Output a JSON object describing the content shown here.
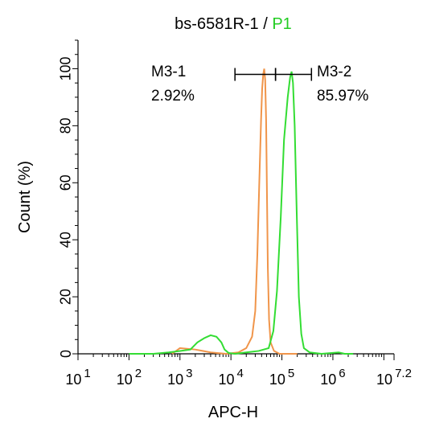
{
  "chart_data": {
    "type": "line",
    "title": {
      "prefix": "bs-6581R-1 / ",
      "highlight": "P1",
      "highlight_color": "#22cc22"
    },
    "xlabel": "APC-H",
    "ylabel": "Count  (%)",
    "x_scale": "log10",
    "xlim": [
      10,
      15848931.92
    ],
    "ylim": [
      0,
      110
    ],
    "x_ticks": [
      {
        "value": 10,
        "base": "10",
        "exp": "1"
      },
      {
        "value": 100,
        "base": "10",
        "exp": "2"
      },
      {
        "value": 1000,
        "base": "10",
        "exp": "3"
      },
      {
        "value": 10000,
        "base": "10",
        "exp": "4"
      },
      {
        "value": 100000,
        "base": "10",
        "exp": "5"
      },
      {
        "value": 1000000,
        "base": "10",
        "exp": "6"
      },
      {
        "value": 15848931.92,
        "base": "10",
        "exp": "7.2"
      }
    ],
    "y_ticks": [
      0,
      20,
      40,
      60,
      80,
      100
    ],
    "grid": false,
    "series": [
      {
        "color": "#f0954a",
        "x": [
          700,
          1000,
          2000,
          4000,
          8000,
          14000,
          20000,
          26000,
          30000,
          33000,
          36000,
          39000,
          41000,
          43000,
          45000,
          47000,
          49000,
          51000,
          53000,
          56000,
          60000,
          70000,
          90000,
          140000,
          200000
        ],
        "y": [
          0,
          2,
          1.5,
          0.5,
          0,
          0.5,
          2,
          6,
          15,
          35,
          60,
          82,
          93,
          98,
          100,
          96,
          82,
          55,
          30,
          12,
          4,
          1,
          0,
          0,
          0
        ]
      },
      {
        "color": "#33dd33",
        "x": [
          100,
          300,
          600,
          1000,
          1600,
          2200,
          3000,
          4000,
          5200,
          6500,
          7500,
          9000,
          12000,
          20000,
          35000,
          55000,
          68000,
          80000,
          95000,
          110000,
          130000,
          145000,
          155000,
          165000,
          178000,
          195000,
          215000,
          240000,
          270000,
          350000,
          600000,
          1300000,
          1700000,
          2500000
        ],
        "y": [
          0,
          0,
          0.5,
          1,
          1.5,
          4,
          5.5,
          6.5,
          6,
          4,
          1.5,
          0.3,
          0,
          0.5,
          1,
          2,
          8,
          22,
          48,
          75,
          90,
          97,
          99,
          95,
          80,
          50,
          20,
          7,
          2,
          0.5,
          0,
          0.5,
          0,
          0
        ]
      }
    ],
    "markers": [
      {
        "label": "M3-1",
        "value": "2.92%",
        "x_start": 12000,
        "x_end": 75000
      },
      {
        "label": "M3-2",
        "value": "85.97%",
        "x_start": 75000,
        "x_end": 380000
      }
    ],
    "marker_y": 98
  }
}
